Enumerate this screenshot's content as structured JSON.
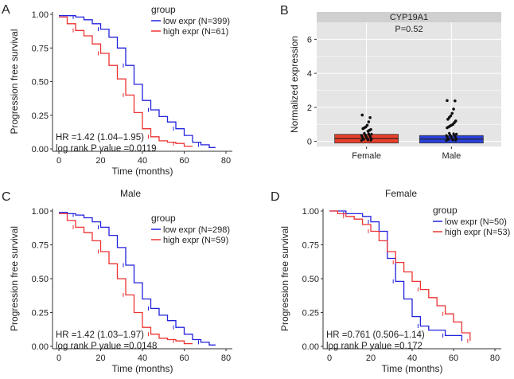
{
  "colors": {
    "low": "#2222dd",
    "high": "#ee3333",
    "female_box": "#e8402a",
    "male_box": "#2a40dd",
    "panel_bg": "#e5e5e5",
    "strip_bg": "#d0d0d0",
    "grid": "#ffffff"
  },
  "chart_data": [
    {
      "panel": "A",
      "type": "line",
      "title": "",
      "xlabel": "Time (months)",
      "ylabel": "Progression free survival",
      "xlim": [
        0,
        80
      ],
      "ylim": [
        0,
        1
      ],
      "xticks": [
        "0",
        "20",
        "40",
        "60",
        "80"
      ],
      "yticks": [
        "0.00",
        "0.25",
        "0.50",
        "0.75",
        "1.00"
      ],
      "legend_title": "group",
      "legend_position": "top-right",
      "series": [
        {
          "name": "low expr (N=399)",
          "key": "low",
          "x": [
            0,
            4,
            8,
            12,
            16,
            20,
            24,
            28,
            32,
            36,
            40,
            44,
            48,
            52,
            56,
            60,
            64,
            68,
            72,
            75
          ],
          "y": [
            0.99,
            0.99,
            0.98,
            0.96,
            0.93,
            0.89,
            0.83,
            0.75,
            0.62,
            0.48,
            0.36,
            0.29,
            0.24,
            0.2,
            0.15,
            0.1,
            0.05,
            0.03,
            0.01,
            0.01
          ]
        },
        {
          "name": "high expr (N=61)",
          "key": "high",
          "x": [
            0,
            4,
            8,
            12,
            16,
            20,
            24,
            28,
            32,
            36,
            40,
            44,
            48,
            52,
            56,
            60,
            64
          ],
          "y": [
            0.98,
            0.93,
            0.88,
            0.84,
            0.78,
            0.71,
            0.62,
            0.52,
            0.4,
            0.27,
            0.15,
            0.09,
            0.06,
            0.05,
            0.04,
            0.02,
            0.02
          ]
        }
      ],
      "annotations": [
        "HR =1.42 (1.04–1.95)",
        "log rank P value =0.0119"
      ]
    },
    {
      "panel": "B",
      "type": "bar",
      "title": "CYP19A1",
      "subtitle": "P=0.52",
      "xlabel": "",
      "ylabel": "Normalized expression",
      "categories": [
        "Female",
        "Male"
      ],
      "values": [
        0.32,
        0.25
      ],
      "ylim": [
        -0.3,
        7
      ],
      "yticks": [
        "0",
        "2",
        "4",
        "6"
      ],
      "outliers": {
        "Female": [
          1.55,
          1.4,
          1.15,
          0.95,
          0.85,
          0.8,
          0.75,
          0.7,
          0.65,
          0.6
        ],
        "Male": [
          2.4,
          2.38,
          1.9,
          1.65,
          1.5,
          1.4,
          1.3,
          1.2,
          1.1,
          1.0,
          0.95,
          0.9,
          0.85,
          0.8
        ]
      }
    },
    {
      "panel": "C",
      "type": "line",
      "title": "Male",
      "xlabel": "Time (months)",
      "ylabel": "Progression free survival",
      "xlim": [
        0,
        80
      ],
      "ylim": [
        0,
        1
      ],
      "xticks": [
        "0",
        "20",
        "40",
        "60",
        "80"
      ],
      "yticks": [
        "0.00",
        "0.25",
        "0.50",
        "0.75",
        "1.00"
      ],
      "legend_title": "group",
      "legend_position": "top-right",
      "series": [
        {
          "name": "low expr (N=298)",
          "key": "low",
          "x": [
            0,
            4,
            8,
            12,
            16,
            20,
            24,
            28,
            32,
            36,
            40,
            44,
            48,
            52,
            56,
            60,
            64,
            68,
            72,
            75
          ],
          "y": [
            0.99,
            0.98,
            0.97,
            0.95,
            0.92,
            0.88,
            0.82,
            0.73,
            0.6,
            0.47,
            0.35,
            0.28,
            0.23,
            0.19,
            0.14,
            0.09,
            0.05,
            0.03,
            0.01,
            0.01
          ]
        },
        {
          "name": "high expr (N=59)",
          "key": "high",
          "x": [
            0,
            4,
            8,
            12,
            16,
            20,
            24,
            28,
            32,
            36,
            40,
            44,
            48,
            52,
            56,
            60,
            64
          ],
          "y": [
            0.98,
            0.93,
            0.88,
            0.84,
            0.78,
            0.7,
            0.61,
            0.5,
            0.38,
            0.25,
            0.14,
            0.09,
            0.06,
            0.05,
            0.04,
            0.02,
            0.02
          ]
        }
      ],
      "annotations": [
        "HR =1.42 (1.03–1.97)",
        "log rank P value =0.0148"
      ]
    },
    {
      "panel": "D",
      "type": "line",
      "title": "Female",
      "xlabel": "Time (months)",
      "ylabel": "Progression free survival",
      "xlim": [
        0,
        80
      ],
      "ylim": [
        0,
        1
      ],
      "xticks": [
        "0",
        "20",
        "40",
        "60",
        "80"
      ],
      "yticks": [
        "0.00",
        "0.25",
        "0.50",
        "0.75",
        "1.00"
      ],
      "legend_title": "group",
      "legend_position": "top-right",
      "series": [
        {
          "name": "low expr (N=50)",
          "key": "low",
          "x": [
            0,
            4,
            8,
            12,
            16,
            20,
            24,
            28,
            32,
            36,
            40,
            44,
            48,
            52,
            56,
            60,
            64
          ],
          "y": [
            1.0,
            1.0,
            0.98,
            0.98,
            0.96,
            0.92,
            0.85,
            0.65,
            0.48,
            0.35,
            0.22,
            0.15,
            0.12,
            0.12,
            0.08,
            0.08,
            0.04
          ]
        },
        {
          "name": "high expr (N=53)",
          "key": "high",
          "x": [
            0,
            4,
            8,
            12,
            16,
            20,
            24,
            28,
            32,
            36,
            40,
            44,
            48,
            52,
            56,
            60,
            64,
            68
          ],
          "y": [
            1.0,
            0.98,
            0.96,
            0.94,
            0.9,
            0.85,
            0.78,
            0.7,
            0.62,
            0.55,
            0.48,
            0.42,
            0.36,
            0.3,
            0.24,
            0.18,
            0.1,
            0.04
          ]
        }
      ],
      "annotations": [
        "HR =0.761 (0.506–1.14)",
        "log rank P value =0.172"
      ]
    }
  ]
}
